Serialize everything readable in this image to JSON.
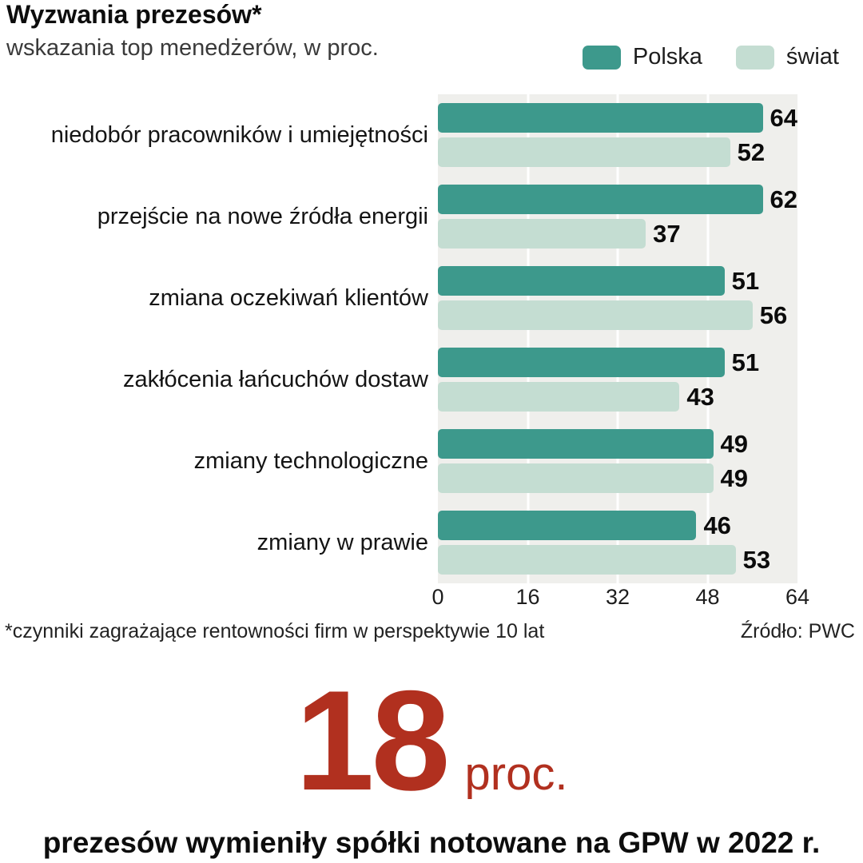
{
  "header": {
    "title": "Wyzwania prezesów*",
    "subtitle": "wskazania top menedżerów, w proc."
  },
  "legend": [
    {
      "label": "Polska",
      "color": "#3d998c"
    },
    {
      "label": "świat",
      "color": "#c4ddd2"
    }
  ],
  "chart_data": {
    "type": "bar",
    "orientation": "horizontal",
    "categories": [
      "niedobór pracowników i umiejętności",
      "przejście na nowe źródła energii",
      "zmiana oczekiwań klientów",
      "zakłócenia łańcuchów dostaw",
      "zmiany technologiczne",
      "zmiany w prawie"
    ],
    "series": [
      {
        "name": "Polska",
        "color": "#3d998c",
        "values": [
          64,
          62,
          51,
          51,
          49,
          46
        ]
      },
      {
        "name": "świat",
        "color": "#c4ddd2",
        "values": [
          52,
          37,
          56,
          43,
          49,
          53
        ]
      }
    ],
    "xlim": [
      0,
      64
    ],
    "xticks": [
      0,
      16,
      32,
      48,
      64
    ],
    "plot_bg": "#efefec",
    "grid": true,
    "legend_position": "top-right"
  },
  "footnote": "*czynniki zagrażające rentowności firm w perspektywie 10 lat",
  "source": "Źródło: PWC",
  "highlight": {
    "number": "18",
    "unit": "proc.",
    "color": "#b1301f",
    "caption": "prezesów wymieniły spółki notowane na GPW w 2022 r."
  }
}
